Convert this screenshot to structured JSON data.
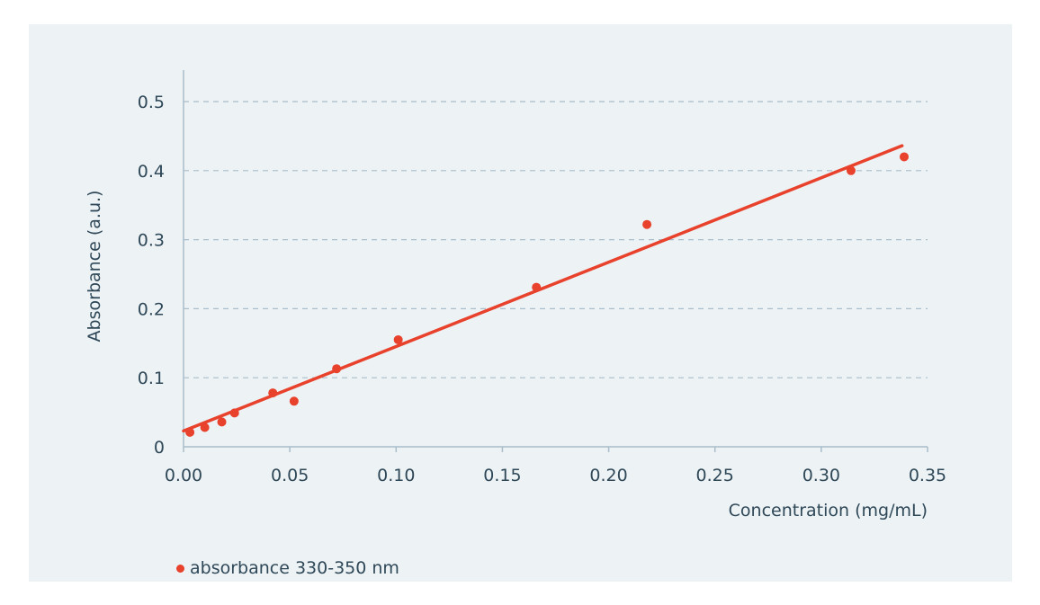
{
  "chart_data": {
    "type": "scatter",
    "title": "",
    "xlabel": "Concentration (mg/mL)",
    "ylabel": "Absorbance (a.u.)",
    "xlim": [
      0.0,
      0.35
    ],
    "ylim": [
      0,
      0.5
    ],
    "x_ticks": [
      "0.00",
      "0.05",
      "0.10",
      "0.15",
      "0.20",
      "0.25",
      "0.30",
      "0.35"
    ],
    "y_ticks": [
      "0",
      "0.1",
      "0.2",
      "0.3",
      "0.4",
      "0.5"
    ],
    "grid": "horizontal dashed",
    "legend_position": "bottom-left",
    "series": [
      {
        "name": "absorbance 330-350 nm",
        "color": "#e8412c",
        "points": [
          {
            "x": 0.003,
            "y": 0.021
          },
          {
            "x": 0.01,
            "y": 0.028
          },
          {
            "x": 0.018,
            "y": 0.036
          },
          {
            "x": 0.024,
            "y": 0.049
          },
          {
            "x": 0.042,
            "y": 0.078
          },
          {
            "x": 0.052,
            "y": 0.066
          },
          {
            "x": 0.072,
            "y": 0.113
          },
          {
            "x": 0.101,
            "y": 0.155
          },
          {
            "x": 0.166,
            "y": 0.231
          },
          {
            "x": 0.218,
            "y": 0.322
          },
          {
            "x": 0.314,
            "y": 0.4
          },
          {
            "x": 0.339,
            "y": 0.42
          }
        ]
      }
    ],
    "trendline": {
      "color": "#e8412c",
      "start": {
        "x": 0.0,
        "y": 0.023
      },
      "end": {
        "x": 0.338,
        "y": 0.436
      }
    }
  }
}
